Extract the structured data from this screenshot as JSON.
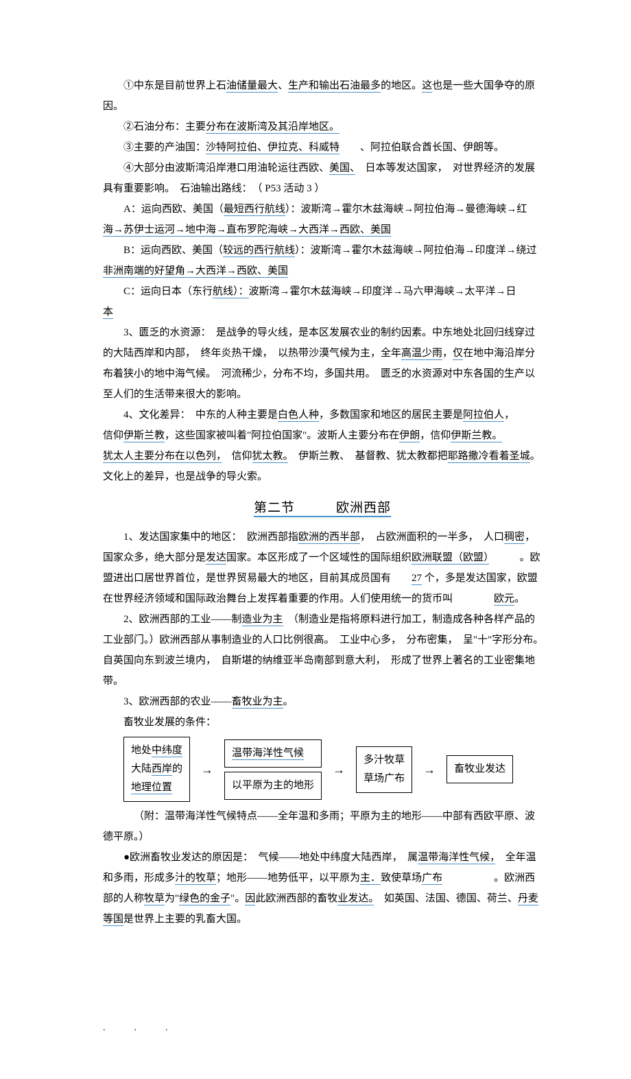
{
  "doc": {
    "p1_a": "①中东是目前世界上石",
    "p1_u1": "油储量最大",
    "p1_b": "、",
    "p1_u2": "生产和输出石油最多",
    "p1_c": "的地区。",
    "p1_u3": "这",
    "p1_d": "也是一些大国争夺的原因。",
    "p2_a": "②石油分布：主要",
    "p2_u1": "分布在波斯湾及其沿岸地区。",
    "p3_a": "③主要的产油国：",
    "p3_u1": "沙特阿拉伯、伊拉克、科威特",
    "p3_b": "　　、阿拉伯联合酋长国、伊朗等。",
    "p4_a": "④大部分由波斯湾沿岸港口用油轮运往西欧、",
    "p4_u1": "美国、",
    "p4_b": "　日本等发达国家，　对世界经济的发展具有重要影响。　石油输出路线：　（ P53 活动 3 ）",
    "p5_a": "A：运向西欧、美国（",
    "p5_u1": "最短西行航线",
    "p5_b": "）：波斯湾→霍尔木兹海峡→阿拉伯海→曼德海峡→红",
    "p5_line2": "海→苏伊士运河→地中海→直布罗陀海峡→大西洋→西欧、美国",
    "p6_a": "B：运向西欧、美国（",
    "p6_u1": "较远的西行航线",
    "p6_b": "）：波斯湾→霍尔木兹海峡→阿拉伯海→印度洋→绕过",
    "p6_line2": "非洲南端的好望角→大西洋→西欧、美国",
    "p7_a": "C：运向日本（东行",
    "p7_u1": "航线）：",
    "p7_b": "波斯湾→霍尔木兹海峡→印度洋→马六甲海峡→太平洋→日",
    "p7_line2": "本",
    "p8_a": "3、匮乏的水资源：　是战争的导火线，是本区发展农业的制约因素。中东地处北回归线穿过的大陆西岸和内部，　终年炎热干燥，　以热带沙漠气候为主，全年",
    "p8_u1": "高温少雨",
    "p8_b": "，",
    "p8_u2": "仅",
    "p8_c": "在地中海沿岸分布着狭小的地中海气候。　河流稀少，分布不均，多国共用。　匮乏的水资源对中东各国的生产以至人们的生活带来很大的影响。",
    "p9_a": "4、文化差异：　中东的人种主要是",
    "p9_u1": "白色人种",
    "p9_b": "，多数国家和地区的居民主要是",
    "p9_u2": "阿拉伯人",
    "p9_c": "，",
    "p9_line2a": "信仰",
    "p9_u3": "伊斯兰教",
    "p9_line2b": "，这些国家被叫着\"阿拉伯国家\"。波斯人主要分布在",
    "p9_u4": "伊朗",
    "p9_line2c": "，信仰",
    "p9_u5": "伊斯兰教。",
    "p9_line3a": "犹太人主要分布在以",
    "p9_u6": "色列，",
    "p9_line3b": "　信仰",
    "p9_u7": "犹太教。",
    "p9_line3c": "　伊斯兰教、　基督教、犹太教都把",
    "p9_u8": "耶路撒冷看着圣城",
    "p9_line3d": "。",
    "p9_line4": "文化上的差异，也是战争的导火索。",
    "section2_title": "第二节　　　欧洲西部",
    "s2p1_a": "1、发达国家集中的地区：　欧洲西部指",
    "s2p1_u1": "欧洲的西半部",
    "s2p1_b": "，　占欧洲面积的一半多，　人口",
    "s2p1_u2": "稠密",
    "s2p1_c": "，国家众多，绝大部分是",
    "s2p1_u3": "发达",
    "s2p1_d": "国家。本区形成了一个区域性的国际组织",
    "s2p1_u4": "欧洲联盟（欧盟）",
    "s2p1_e": "　　　。欧盟进出口居世界首位，是世界贸易最大的地区，目前其成员国有　　",
    "s2p1_u5": "27",
    "s2p1_f": " 个，多是发达国家，欧盟在世界经济领域和国际政治舞台上发挥着重要的作用。人们使用统一的货币叫　　　　",
    "s2p1_u6": "欧元",
    "s2p1_g": "。",
    "s2p2_a": "2、欧洲西部的工业——制",
    "s2p2_u1": "造业为主",
    "s2p2_b": "　（制造业是指将原料进行加工，制造成各种各样产品的工业部门。）欧洲西部从事制造业的人口比例很高。　工业中心多，　分布密集，　呈\"十\"字形分布。　自英国向东到波兰境内，　自斯堪的纳维亚半岛南部到意大利，　形成了世界上著名的工业密集地带。",
    "s2p3_a": "3、欧洲西部的农业——",
    "s2p3_u1": "畜牧业为主",
    "s2p3_b": "。",
    "s2p4": "畜牧业发展的条件：",
    "box1_l1a": "地处",
    "box1_l1u": "中纬度",
    "box1_l2a": "大陆",
    "box1_l2u": "西岸",
    "box1_l2b": "的",
    "box1_l3u": "地理位置",
    "box2a_u": "温带海洋性气候",
    "box2b": "以平原为主的地形",
    "box3_l1": "多汁牧草",
    "box3_l2": "草场广布",
    "box4": "畜牧业发达",
    "attach_a": "（附：温带海洋性气候特点——全年温和多雨；平原为主的地形——中部有西欧平原、波德平原。）",
    "s2p5_a": "●欧洲畜牧业发达的原因是：　气候——地处中纬度大陆西岸，　属",
    "s2p5_u1": "温带海洋性气候，",
    "s2p5_b": "　全年温和多雨，形成多",
    "s2p5_u2": "汁的牧草",
    "s2p5_c": "；地形——地势低平，以平原为",
    "s2p5_u3": "主．",
    "s2p5_d": "致使草场",
    "s2p5_u4": "广布",
    "s2p5_e": "　　　　　。欧洲西部的人称",
    "s2p5_u5": "牧草",
    "s2p5_f": "为\"",
    "s2p5_u6": "绿色的金子",
    "s2p5_g": "\"。",
    "s2p5_u7": "因",
    "s2p5_h": "此欧洲西部的畜牧",
    "s2p5_u8": "业发达。",
    "s2p5_i": "　如英国、法国、德国、荷兰、",
    "s2p5_u9": "丹麦",
    "s2p5_line3a": "等国",
    "s2p5_line3b": "是世界上主要的乳畜大国。",
    "footer": ".　　　.　　　."
  }
}
